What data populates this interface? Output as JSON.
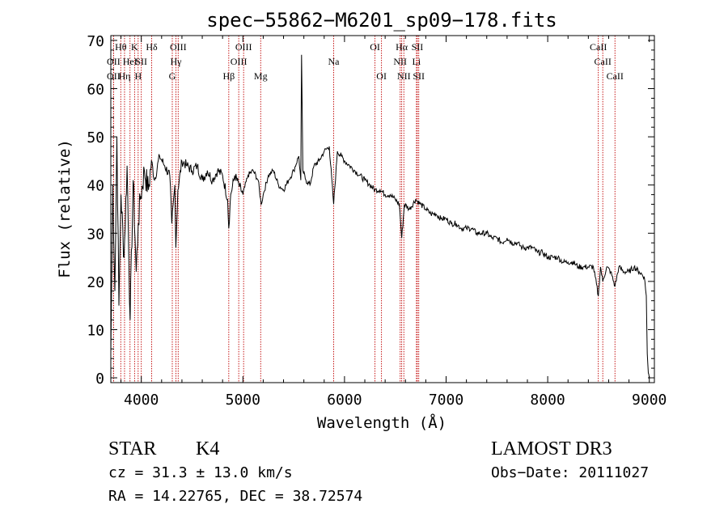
{
  "chart_data": {
    "type": "line",
    "title": "spec−55862−M6201_sp09−178.fits",
    "xlabel": "Wavelength (Å)",
    "ylabel": "Flux (relative)",
    "xlim": [
      3700,
      9050
    ],
    "ylim": [
      -1,
      71
    ],
    "xticks": [
      4000,
      5000,
      6000,
      7000,
      8000,
      9000
    ],
    "xtick_labels": [
      "4000",
      "5000",
      "6000",
      "7000",
      "8000",
      "9000"
    ],
    "yticks": [
      0,
      10,
      20,
      30,
      40,
      50,
      60,
      70
    ],
    "ytick_labels": [
      "0",
      "10",
      "20",
      "30",
      "40",
      "50",
      "60",
      "70"
    ],
    "grid": false,
    "series": [
      {
        "name": "spectrum",
        "x": [
          3700,
          3720,
          3740,
          3760,
          3780,
          3800,
          3830,
          3860,
          3890,
          3920,
          3950,
          3970,
          3990,
          4030,
          4070,
          4100,
          4130,
          4180,
          4230,
          4280,
          4300,
          4330,
          4340,
          4360,
          4400,
          4450,
          4500,
          4550,
          4600,
          4650,
          4700,
          4750,
          4800,
          4850,
          4861,
          4880,
          4920,
          4960,
          5000,
          5050,
          5100,
          5150,
          5180,
          5200,
          5250,
          5300,
          5350,
          5400,
          5450,
          5500,
          5550,
          5570,
          5577,
          5590,
          5620,
          5660,
          5700,
          5750,
          5800,
          5850,
          5893,
          5930,
          5970,
          6000,
          6050,
          6100,
          6150,
          6200,
          6250,
          6300,
          6350,
          6400,
          6450,
          6500,
          6540,
          6563,
          6590,
          6640,
          6700,
          6750,
          6800,
          6850,
          6900,
          6950,
          7000,
          7050,
          7100,
          7150,
          7200,
          7250,
          7300,
          7350,
          7400,
          7450,
          7500,
          7550,
          7600,
          7650,
          7700,
          7750,
          7800,
          7850,
          7900,
          7950,
          8000,
          8050,
          8100,
          8150,
          8200,
          8250,
          8300,
          8350,
          8400,
          8450,
          8498,
          8520,
          8542,
          8580,
          8620,
          8662,
          8700,
          8750,
          8800,
          8850,
          8900,
          8950,
          8970,
          8980,
          8990,
          9000
        ],
        "values": [
          5,
          40,
          18,
          50,
          15,
          38,
          25,
          44,
          12,
          41,
          22,
          32,
          37,
          43,
          39,
          45,
          41,
          46,
          44,
          42,
          32,
          40,
          27,
          39,
          45,
          44,
          43,
          44,
          41,
          43,
          41,
          43,
          42,
          37,
          31,
          38,
          42,
          40,
          38,
          42,
          43,
          41,
          36,
          38,
          42,
          43,
          40,
          39,
          41,
          43,
          46,
          41,
          67,
          43,
          41,
          40,
          44,
          45,
          47,
          48,
          36,
          47,
          46,
          45,
          44,
          43,
          42,
          41,
          40,
          39,
          39,
          38,
          38,
          37,
          36,
          29,
          36,
          35,
          37,
          36,
          35,
          34,
          34,
          33,
          33,
          32,
          32,
          31,
          31,
          31,
          30,
          30,
          30,
          29,
          29,
          28,
          29,
          28,
          28,
          27,
          27,
          27,
          26,
          26,
          25,
          25,
          25,
          24,
          24,
          24,
          23,
          23,
          23,
          23,
          17,
          23,
          20,
          23,
          22,
          19,
          23,
          22,
          22,
          23,
          22,
          21,
          17,
          5,
          1,
          0
        ]
      }
    ],
    "lines": [
      {
        "name": "O II",
        "x": 3727,
        "label": "OII",
        "row": 2
      },
      {
        "name": "H theta",
        "x": 3798,
        "label": "Hθ",
        "row": 1
      },
      {
        "name": "O II b",
        "x": 3727,
        "label": "OII",
        "row": 3
      },
      {
        "name": "H eta",
        "x": 3835,
        "label": "Hη",
        "row": 3
      },
      {
        "name": "He I",
        "x": 3889,
        "label": "HeI",
        "row": 2
      },
      {
        "name": "K",
        "x": 3934,
        "label": "K",
        "row": 1
      },
      {
        "name": "H",
        "x": 3969,
        "label": "H",
        "row": 3
      },
      {
        "name": "S II",
        "x": 4000,
        "label": "SII",
        "row": 2
      },
      {
        "name": "H delta",
        "x": 4102,
        "label": "Hδ",
        "row": 1
      },
      {
        "name": "O III",
        "x": 4363,
        "label": "OIII",
        "row": 1
      },
      {
        "name": "H gamma",
        "x": 4341,
        "label": "Hγ",
        "row": 2
      },
      {
        "name": "G",
        "x": 4305,
        "label": "G",
        "row": 3
      },
      {
        "name": "H beta",
        "x": 4861,
        "label": "Hβ",
        "row": 3
      },
      {
        "name": "O III b",
        "x": 4959,
        "label": "OIII",
        "row": 2
      },
      {
        "name": "O III c",
        "x": 5007,
        "label": "OIII",
        "row": 1
      },
      {
        "name": "Mg",
        "x": 5175,
        "label": "Mg",
        "row": 3
      },
      {
        "name": "Na",
        "x": 5893,
        "label": "Na",
        "row": 2
      },
      {
        "name": "O I",
        "x": 6300,
        "label": "OI",
        "row": 1
      },
      {
        "name": "O I b",
        "x": 6364,
        "label": "OI",
        "row": 3
      },
      {
        "name": "N II",
        "x": 6548,
        "label": "NII",
        "row": 2
      },
      {
        "name": "H alpha",
        "x": 6563,
        "label": "Hα",
        "row": 1
      },
      {
        "name": "N II b",
        "x": 6584,
        "label": "NII",
        "row": 3
      },
      {
        "name": "S II b",
        "x": 6717,
        "label": "SII",
        "row": 1
      },
      {
        "name": "Li",
        "x": 6708,
        "label": "Li",
        "row": 2
      },
      {
        "name": "S II c",
        "x": 6731,
        "label": "SII",
        "row": 3
      },
      {
        "name": "Ca II",
        "x": 8498,
        "label": "CaII",
        "row": 1
      },
      {
        "name": "Ca II b",
        "x": 8542,
        "label": "CaII",
        "row": 2
      },
      {
        "name": "Ca II c",
        "x": 8662,
        "label": "CaII",
        "row": 3
      }
    ],
    "line_color": "#c00000"
  },
  "info": {
    "object_class": "STAR",
    "subclass": "K4",
    "survey": "LAMOST DR3",
    "redshift": "cz = 31.3 ± 13.0 km/s",
    "obs_date": "Obs−Date: 20111027",
    "coords": "RA =  14.22765, DEC =  38.72574"
  }
}
